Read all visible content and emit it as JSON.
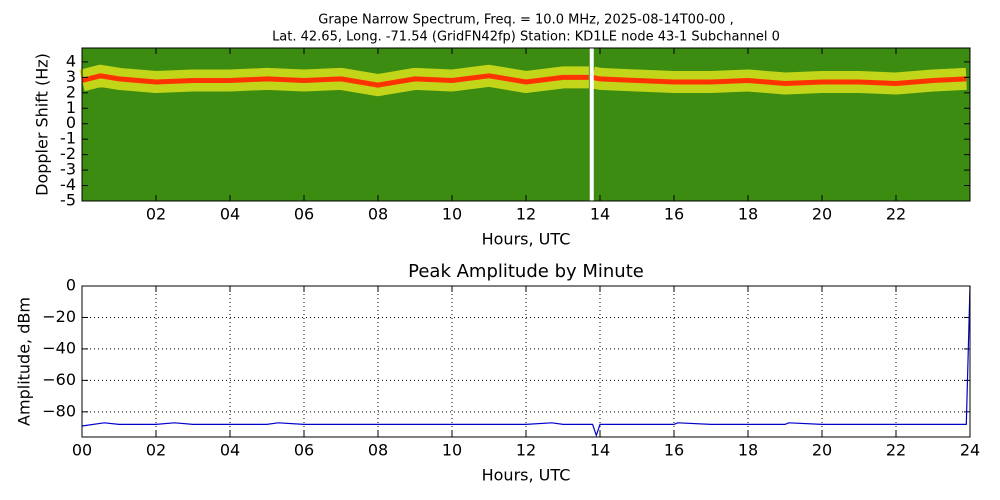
{
  "chart_data": [
    {
      "type": "spectrogram",
      "title": [
        "Grape Narrow Spectrum, Freq. = 10.0 MHz, 2025-08-14T00-00 ,",
        "Lat.  42.65, Long. -71.54 (GridFN42fp) Station: KD1LE node 43-1 Subchannel 0"
      ],
      "xlabel": "Hours, UTC",
      "ylabel": "Doppler Shift (Hz)",
      "xlim": [
        0,
        24
      ],
      "ylim": [
        -5,
        4.9
      ],
      "xticks": [
        {
          "value": 2,
          "label": "02"
        },
        {
          "value": 4,
          "label": "04"
        },
        {
          "value": 6,
          "label": "06"
        },
        {
          "value": 8,
          "label": "08"
        },
        {
          "value": 10,
          "label": "10"
        },
        {
          "value": 12,
          "label": "12"
        },
        {
          "value": 14,
          "label": "14"
        },
        {
          "value": 16,
          "label": "16"
        },
        {
          "value": 18,
          "label": "18"
        },
        {
          "value": 20,
          "label": "20"
        },
        {
          "value": 22,
          "label": "22"
        }
      ],
      "yticks": [
        4,
        3,
        2,
        1,
        0,
        -1,
        -2,
        -3,
        -4,
        -5
      ],
      "x": [
        0,
        0.5,
        1,
        2,
        3,
        4,
        5,
        6,
        7,
        8,
        9,
        10,
        11,
        12,
        13,
        13.7,
        13.75,
        13.8,
        14,
        15,
        16,
        17,
        18,
        19,
        20,
        21,
        22,
        23,
        23.9
      ],
      "values": [
        2.8,
        3.1,
        2.9,
        2.7,
        2.8,
        2.8,
        2.9,
        2.8,
        2.9,
        2.5,
        2.9,
        2.8,
        3.1,
        2.7,
        3.0,
        3.0,
        null,
        3.0,
        2.9,
        2.8,
        2.7,
        2.7,
        2.8,
        2.6,
        2.7,
        2.7,
        2.6,
        2.8,
        2.9
      ],
      "color": "#ff3300",
      "background": "#3d8c12",
      "band_color": "#d9e21a",
      "grid": false
    },
    {
      "type": "line",
      "title": "Peak Amplitude by Minute",
      "xlabel": "Hours, UTC",
      "ylabel": "Amplitude, dBm",
      "xlim": [
        0,
        24
      ],
      "ylim": [
        -96,
        0
      ],
      "xticks": [
        {
          "value": 0,
          "label": "00"
        },
        {
          "value": 2,
          "label": "02"
        },
        {
          "value": 4,
          "label": "04"
        },
        {
          "value": 6,
          "label": "06"
        },
        {
          "value": 8,
          "label": "08"
        },
        {
          "value": 10,
          "label": "10"
        },
        {
          "value": 12,
          "label": "12"
        },
        {
          "value": 14,
          "label": "14"
        },
        {
          "value": 16,
          "label": "16"
        },
        {
          "value": 18,
          "label": "18"
        },
        {
          "value": 20,
          "label": "20"
        },
        {
          "value": 22,
          "label": "22"
        },
        {
          "value": 24,
          "label": "24"
        }
      ],
      "yticks": [
        0,
        {
          "value": -20,
          "label": "−20"
        },
        {
          "value": -40,
          "label": "−40"
        },
        {
          "value": -60,
          "label": "−60"
        },
        {
          "value": -80,
          "label": "−80"
        }
      ],
      "x": [
        0,
        0.6,
        1,
        2,
        2.5,
        3,
        4,
        5,
        5.3,
        6,
        7,
        8,
        9,
        10,
        11,
        12,
        12.7,
        13,
        13.8,
        13.9,
        14,
        15,
        16,
        16.1,
        17,
        18,
        19,
        19.1,
        20,
        21,
        22,
        23,
        23.9,
        24
      ],
      "values": [
        -89,
        -87,
        -88,
        -88,
        -87,
        -88,
        -88,
        -88,
        -87,
        -88,
        -88,
        -88,
        -88,
        -88,
        -88,
        -88,
        -87,
        -88,
        -88,
        -95,
        -88,
        -88,
        -88,
        -87,
        -88,
        -88,
        -88,
        -87,
        -88,
        -88,
        -88,
        -88,
        -88,
        0
      ],
      "color": "#0000cc",
      "grid": true
    }
  ]
}
